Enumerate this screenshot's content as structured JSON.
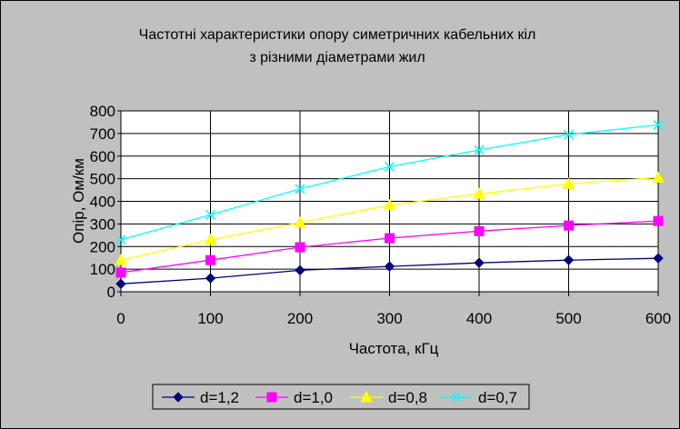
{
  "chart_data": {
    "type": "line",
    "title": "Частотні характеристики опору симетричних кабельних кіл",
    "subtitle": "з різними діаметрами жил",
    "xlabel": "Частота, кГц",
    "ylabel": "Опір, Ом/км",
    "x": [
      0,
      100,
      200,
      300,
      400,
      500,
      600
    ],
    "xlim": [
      0,
      600
    ],
    "ylim": [
      0,
      800
    ],
    "xticks": [
      "0",
      "100",
      "200",
      "300",
      "400",
      "500",
      "600"
    ],
    "yticks": [
      "0",
      "100",
      "200",
      "300",
      "400",
      "500",
      "600",
      "700",
      "800"
    ],
    "grid": true,
    "legend_position": "bottom",
    "background_color": "#c0c0c0",
    "plot_background_color": "#ffffff",
    "gridline_color": "#000000",
    "series": [
      {
        "name": "d=1,2",
        "color": "#000080",
        "marker": "diamond",
        "values": [
          35,
          60,
          95,
          112,
          128,
          140,
          148
        ]
      },
      {
        "name": "d=1,0",
        "color": "#ff00ff",
        "marker": "square",
        "values": [
          85,
          140,
          197,
          237,
          268,
          293,
          313
        ]
      },
      {
        "name": "d=0,8",
        "color": "#ffff00",
        "marker": "triangle",
        "values": [
          140,
          230,
          306,
          383,
          433,
          477,
          505
        ]
      },
      {
        "name": "d=0,7",
        "color": "#00ffff",
        "marker": "x",
        "values": [
          230,
          340,
          455,
          553,
          627,
          695,
          738
        ]
      }
    ]
  }
}
